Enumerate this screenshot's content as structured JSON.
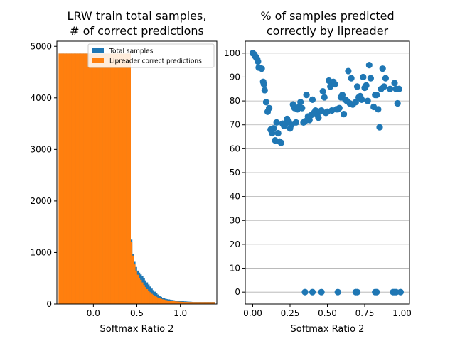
{
  "chart_data": [
    {
      "type": "bar",
      "title_lines": [
        "LRW train total samples,",
        "# of correct predictions"
      ],
      "xlabel": "Softmax Ratio 2",
      "ylabel": "",
      "xlim": [
        -0.42,
        1.42
      ],
      "ylim": [
        0,
        5100
      ],
      "xticks": [
        0.0,
        0.5,
        1.0
      ],
      "xtick_labels": [
        "0.0",
        "0.5",
        "1.0"
      ],
      "yticks": [
        0,
        1000,
        2000,
        3000,
        4000,
        5000
      ],
      "ytick_labels": [
        "0",
        "1000",
        "2000",
        "3000",
        "4000",
        "5000"
      ],
      "grid": false,
      "legend": {
        "placement": "top-right",
        "entries": [
          {
            "label": "Total samples",
            "color": "#1f77b4"
          },
          {
            "label": "Lipreader correct predictions",
            "color": "#ff7f0e"
          }
        ]
      },
      "bins": {
        "x_start": -0.4,
        "x_end": 1.4,
        "count": 100,
        "total": [
          4860,
          4860,
          4860,
          4860,
          4860,
          4860,
          4860,
          4860,
          4860,
          4860,
          4860,
          4860,
          4860,
          4860,
          4860,
          4860,
          4860,
          4860,
          4860,
          4860,
          4860,
          4860,
          4860,
          4860,
          4860,
          4860,
          4860,
          4860,
          4860,
          4860,
          4860,
          4860,
          4860,
          4860,
          4860,
          4860,
          4860,
          4860,
          4860,
          4860,
          4860,
          4860,
          4860,
          4860,
          4860,
          4860,
          1250,
          970,
          820,
          720,
          650,
          610,
          575,
          540,
          500,
          460,
          420,
          380,
          340,
          300,
          270,
          240,
          210,
          185,
          160,
          140,
          120,
          110,
          100,
          95,
          90,
          85,
          80,
          75,
          70,
          65,
          62,
          60,
          58,
          55,
          52,
          50,
          48,
          46,
          44,
          42,
          40,
          40,
          40,
          40,
          40,
          40,
          40,
          40,
          40,
          40,
          40,
          40,
          40,
          40
        ],
        "correct": [
          4860,
          4860,
          4860,
          4860,
          4860,
          4860,
          4860,
          4860,
          4860,
          4860,
          4860,
          4860,
          4860,
          4860,
          4860,
          4860,
          4860,
          4860,
          4860,
          4860,
          4860,
          4860,
          4860,
          4860,
          4860,
          4860,
          4860,
          4860,
          4860,
          4860,
          4860,
          4860,
          4860,
          4860,
          4860,
          4860,
          4860,
          4860,
          4860,
          4860,
          4860,
          4860,
          4860,
          4860,
          4860,
          4860,
          1210,
          940,
          770,
          650,
          570,
          510,
          470,
          420,
          370,
          330,
          290,
          260,
          230,
          200,
          180,
          160,
          140,
          125,
          110,
          100,
          92,
          85,
          78,
          72,
          68,
          62,
          58,
          55,
          52,
          50,
          48,
          46,
          44,
          42,
          40,
          40,
          39,
          38,
          38,
          38,
          37,
          37,
          37,
          37,
          37,
          37,
          37,
          37,
          37,
          37,
          37,
          37,
          37,
          37
        ]
      }
    },
    {
      "type": "scatter",
      "title_lines": [
        "% of samples predicted",
        "correctly by lipreader"
      ],
      "xlabel": "Softmax Ratio 2",
      "ylabel": "",
      "xlim": [
        -0.05,
        1.05
      ],
      "ylim": [
        -5,
        105
      ],
      "xticks": [
        0.0,
        0.25,
        0.5,
        0.75,
        1.0
      ],
      "xtick_labels": [
        "0.00",
        "0.25",
        "0.50",
        "0.75",
        "1.00"
      ],
      "yticks": [
        0,
        10,
        20,
        30,
        40,
        50,
        60,
        70,
        80,
        90,
        100
      ],
      "ytick_labels": [
        "0",
        "10",
        "20",
        "30",
        "40",
        "50",
        "60",
        "70",
        "80",
        "90",
        "100"
      ],
      "grid": true,
      "grid_axis": "y",
      "color": "#1f77b4",
      "points": [
        [
          0.0,
          100.0
        ],
        [
          0.01,
          99.5
        ],
        [
          0.015,
          98.8
        ],
        [
          0.02,
          98.5
        ],
        [
          0.025,
          98.0
        ],
        [
          0.03,
          97.5
        ],
        [
          0.035,
          96.5
        ],
        [
          0.04,
          94.0
        ],
        [
          0.05,
          93.8
        ],
        [
          0.06,
          93.5
        ],
        [
          0.07,
          88.0
        ],
        [
          0.075,
          87.0
        ],
        [
          0.08,
          84.5
        ],
        [
          0.09,
          79.5
        ],
        [
          0.1,
          75.5
        ],
        [
          0.11,
          77.0
        ],
        [
          0.12,
          68.0
        ],
        [
          0.125,
          67.5
        ],
        [
          0.13,
          66.5
        ],
        [
          0.14,
          68.5
        ],
        [
          0.15,
          63.5
        ],
        [
          0.16,
          71.0
        ],
        [
          0.17,
          66.5
        ],
        [
          0.18,
          63.0
        ],
        [
          0.19,
          62.5
        ],
        [
          0.2,
          70.5
        ],
        [
          0.21,
          69.5
        ],
        [
          0.22,
          70.5
        ],
        [
          0.23,
          72.5
        ],
        [
          0.24,
          71.5
        ],
        [
          0.25,
          68.5
        ],
        [
          0.26,
          70.0
        ],
        [
          0.27,
          78.5
        ],
        [
          0.28,
          77.0
        ],
        [
          0.29,
          71.0
        ],
        [
          0.3,
          76.5
        ],
        [
          0.31,
          77.5
        ],
        [
          0.32,
          79.5
        ],
        [
          0.33,
          77.0
        ],
        [
          0.34,
          71.0
        ],
        [
          0.35,
          71.5
        ],
        [
          0.36,
          82.5
        ],
        [
          0.37,
          73.5
        ],
        [
          0.38,
          72.0
        ],
        [
          0.39,
          74.0
        ],
        [
          0.4,
          80.5
        ],
        [
          0.41,
          75.0
        ],
        [
          0.42,
          76.0
        ],
        [
          0.43,
          74.5
        ],
        [
          0.44,
          73.0
        ],
        [
          0.45,
          75.5
        ],
        [
          0.46,
          76.0
        ],
        [
          0.47,
          84.0
        ],
        [
          0.48,
          81.5
        ],
        [
          0.49,
          75.0
        ],
        [
          0.5,
          75.5
        ],
        [
          0.51,
          88.5
        ],
        [
          0.52,
          86.0
        ],
        [
          0.53,
          76.0
        ],
        [
          0.54,
          88.0
        ],
        [
          0.55,
          87.0
        ],
        [
          0.56,
          76.5
        ],
        [
          0.57,
          76.5
        ],
        [
          0.58,
          77.0
        ],
        [
          0.59,
          81.5
        ],
        [
          0.6,
          82.5
        ],
        [
          0.61,
          74.5
        ],
        [
          0.62,
          80.5
        ],
        [
          0.63,
          80.0
        ],
        [
          0.64,
          92.5
        ],
        [
          0.65,
          79.0
        ],
        [
          0.66,
          89.5
        ],
        [
          0.67,
          78.5
        ],
        [
          0.69,
          79.5
        ],
        [
          0.7,
          86.0
        ],
        [
          0.71,
          81.5
        ],
        [
          0.72,
          82.0
        ],
        [
          0.73,
          80.5
        ],
        [
          0.74,
          90.0
        ],
        [
          0.75,
          85.5
        ],
        [
          0.76,
          86.5
        ],
        [
          0.77,
          80.0
        ],
        [
          0.78,
          95.0
        ],
        [
          0.79,
          89.5
        ],
        [
          0.81,
          77.5
        ],
        [
          0.82,
          82.5
        ],
        [
          0.83,
          82.5
        ],
        [
          0.84,
          76.5
        ],
        [
          0.85,
          69.0
        ],
        [
          0.86,
          85.0
        ],
        [
          0.87,
          93.5
        ],
        [
          0.88,
          86.0
        ],
        [
          0.89,
          89.5
        ],
        [
          0.92,
          85.0
        ],
        [
          0.95,
          87.5
        ],
        [
          0.96,
          85.0
        ],
        [
          0.97,
          79.0
        ],
        [
          0.98,
          85.0
        ],
        [
          0.35,
          0
        ],
        [
          0.4,
          0
        ],
        [
          0.46,
          0
        ],
        [
          0.57,
          0
        ],
        [
          0.69,
          0
        ],
        [
          0.7,
          0
        ],
        [
          0.82,
          0
        ],
        [
          0.83,
          0
        ],
        [
          0.94,
          0
        ],
        [
          0.95,
          0
        ],
        [
          0.96,
          0
        ],
        [
          0.99,
          0
        ]
      ]
    }
  ]
}
